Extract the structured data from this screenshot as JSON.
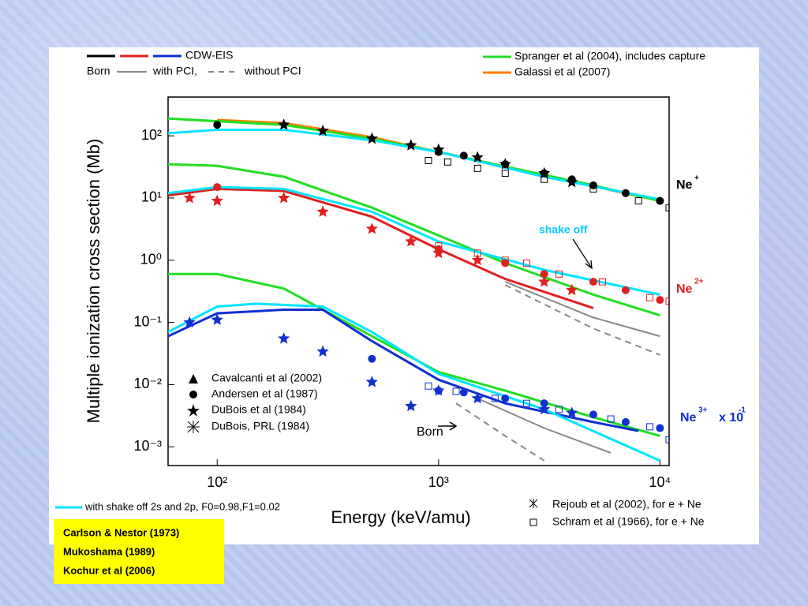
{
  "chart_data": {
    "type": "line",
    "log_x": true,
    "log_y": true,
    "x_label": "Energy (keV/amu)",
    "y_label": "Multiple ionization cross section (Mb)",
    "xlim": [
      60,
      11000
    ],
    "ylim": [
      0.0005,
      420
    ],
    "xticks": [
      {
        "value": 100,
        "label": "10²"
      },
      {
        "value": 1000,
        "label": "10³"
      },
      {
        "value": 10000,
        "label": "10⁴"
      }
    ],
    "yticks": [
      {
        "value": 0.001,
        "label": "10⁻³"
      },
      {
        "value": 0.01,
        "label": "10⁻²"
      },
      {
        "value": 0.1,
        "label": "10⁻¹"
      },
      {
        "value": 1,
        "label": "10⁰"
      },
      {
        "value": 10,
        "label": "10¹"
      },
      {
        "value": 100,
        "label": "10²"
      }
    ],
    "legend": [
      "CDW-EIS",
      "Born",
      "with PCI,",
      "without PCI",
      "Spranger et al (2004), includes capture",
      "Galassi et al (2007)",
      "Cavalcanti et al (2002)",
      "Andersen et al (1987)",
      "DuBois et al (1984)",
      "DuBois, PRL (1984)",
      "with shake off 2s and 2p, F0=0.98,F1=0.02",
      "Rejoub et al (2002), for e + Ne",
      "Schram et al (1966), for e + Ne"
    ],
    "annotations": [
      "Ne",
      "+",
      "Ne",
      "2+",
      "Ne",
      "3+",
      "x 10",
      "-1",
      "shake off",
      "Born"
    ],
    "side_box": [
      "Carlson & Nestor (1973)",
      "Mukoshama (1989)",
      "Kochur et al (2006)"
    ],
    "series": [
      {
        "color": "#ff8000",
        "marker": "line",
        "x": [
          100,
          200,
          500,
          1000,
          10000
        ],
        "values": [
          180,
          160,
          95,
          55,
          9
        ]
      },
      {
        "color": "#22dd22",
        "marker": "line",
        "x": [
          60,
          200,
          500,
          1000,
          2000,
          5000,
          10000
        ],
        "values": [
          190,
          150,
          90,
          55,
          32,
          16,
          9
        ]
      },
      {
        "color": "#00e5ff",
        "marker": "line",
        "x": [
          60,
          100,
          200,
          500,
          1000,
          3000,
          10000
        ],
        "values": [
          110,
          125,
          125,
          85,
          55,
          22,
          9.5
        ]
      },
      {
        "color": "#22dd22",
        "marker": "line",
        "x": [
          60,
          100,
          200,
          500,
          1000,
          2000,
          5000,
          10000
        ],
        "values": [
          35,
          33,
          22,
          7,
          2.5,
          0.9,
          0.28,
          0.13
        ]
      },
      {
        "color": "#e02020",
        "marker": "line",
        "x": [
          60,
          100,
          200,
          500,
          1000,
          2000,
          5000
        ],
        "values": [
          11,
          14,
          13,
          5,
          1.5,
          0.5,
          0.17
        ]
      },
      {
        "color": "#00e5ff",
        "marker": "line",
        "x": [
          60,
          100,
          200,
          500,
          1000,
          3000,
          10000
        ],
        "values": [
          12,
          15,
          14,
          6,
          2,
          0.7,
          0.28
        ]
      },
      {
        "color": "#888888",
        "marker": "line",
        "x": [
          2000,
          5000,
          10000
        ],
        "values": [
          0.45,
          0.12,
          0.06
        ]
      },
      {
        "color": "#888888",
        "marker": "dash",
        "x": [
          2000,
          5000,
          10000
        ],
        "values": [
          0.4,
          0.08,
          0.03
        ]
      },
      {
        "color": "#22dd22",
        "marker": "line",
        "x": [
          60,
          100,
          200,
          500,
          1000,
          2000,
          5000,
          10000
        ],
        "values": [
          0.6,
          0.6,
          0.35,
          0.06,
          0.016,
          0.008,
          0.003,
          0.0015
        ]
      },
      {
        "color": "#1030d0",
        "marker": "line",
        "x": [
          60,
          100,
          200,
          300,
          500,
          1000,
          2000,
          5000,
          8000
        ],
        "values": [
          0.06,
          0.14,
          0.16,
          0.16,
          0.05,
          0.012,
          0.005,
          0.0025,
          0.0018
        ]
      },
      {
        "color": "#00e5ff",
        "marker": "line",
        "x": [
          60,
          100,
          150,
          300,
          500,
          1000,
          3000,
          10000
        ],
        "values": [
          0.07,
          0.18,
          0.2,
          0.18,
          0.07,
          0.015,
          0.004,
          0.0006
        ]
      },
      {
        "color": "#888888",
        "marker": "line",
        "x": [
          1500,
          3000,
          6000
        ],
        "values": [
          0.006,
          0.002,
          0.0008
        ]
      },
      {
        "color": "#888888",
        "marker": "dash",
        "x": [
          1200,
          2000,
          3000
        ],
        "values": [
          0.005,
          0.0015,
          0.0006
        ]
      },
      {
        "color": "#000000",
        "marker": "circle",
        "x": [
          100,
          1000,
          1300,
          2000,
          3000,
          4000,
          5000,
          7000,
          10000
        ],
        "values": [
          150,
          55,
          48,
          35,
          25,
          20,
          16,
          12,
          9
        ]
      },
      {
        "color": "#000000",
        "marker": "star",
        "x": [
          200,
          300,
          500,
          750,
          1000,
          1500,
          2000,
          3000,
          4000
        ],
        "values": [
          150,
          120,
          90,
          70,
          60,
          45,
          35,
          25,
          18
        ]
      },
      {
        "color": "#000000",
        "marker": "square",
        "x": [
          900,
          1100,
          1500,
          2000,
          3000,
          5000,
          8000,
          11000
        ],
        "values": [
          40,
          38,
          30,
          25,
          20,
          14,
          9,
          7
        ]
      },
      {
        "color": "#e02020",
        "marker": "circle",
        "x": [
          100,
          1000,
          2000,
          3000,
          5000,
          7000,
          10000
        ],
        "values": [
          15,
          1.5,
          0.9,
          0.6,
          0.45,
          0.33,
          0.23
        ]
      },
      {
        "color": "#e02020",
        "marker": "star",
        "x": [
          75,
          100,
          200,
          300,
          500,
          750,
          1000,
          1500,
          3000,
          4000
        ],
        "values": [
          10,
          9,
          10,
          6,
          3.2,
          2,
          1.3,
          1,
          0.45,
          0.33
        ]
      },
      {
        "color": "#e02020",
        "marker": "square",
        "x": [
          1000,
          1500,
          2000,
          2500,
          3500,
          5500,
          9000,
          11000
        ],
        "values": [
          1.7,
          1.3,
          1.0,
          0.9,
          0.6,
          0.45,
          0.25,
          0.22
        ]
      },
      {
        "color": "#1030d0",
        "marker": "circle",
        "x": [
          500,
          1000,
          1300,
          2000,
          3000,
          5000,
          7000,
          10000
        ],
        "values": [
          0.026,
          0.008,
          0.0075,
          0.006,
          0.005,
          0.0033,
          0.0025,
          0.002
        ]
      },
      {
        "color": "#1030d0",
        "marker": "star",
        "x": [
          75,
          100,
          200,
          300,
          500,
          750,
          1000,
          1500,
          3000,
          4000
        ],
        "values": [
          0.1,
          0.11,
          0.055,
          0.034,
          0.011,
          0.0045,
          0.008,
          0.006,
          0.004,
          0.0035
        ]
      },
      {
        "color": "#1030d0",
        "marker": "square",
        "x": [
          900,
          1200,
          1800,
          2500,
          3500,
          6000,
          9000,
          11000
        ],
        "values": [
          0.0095,
          0.0078,
          0.006,
          0.005,
          0.004,
          0.0028,
          0.0021,
          0.0013
        ]
      }
    ]
  }
}
